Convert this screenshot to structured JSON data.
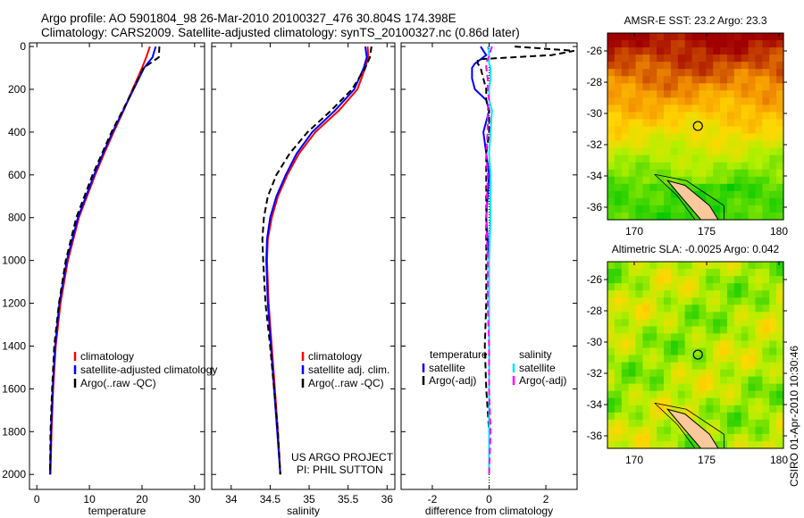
{
  "title_line1": "Argo profile: AO 5901804_98 26-Mar-2010 20100327_476 30.804S 174.398E",
  "title_line2": "Climatology: CARS2009. Satellite-adjusted climatology: synTS_20100327.nc (0.86d later)",
  "credit_project": "US ARGO PROJECT",
  "credit_pi": "PI: PHIL SUTTON",
  "timestamp": "CSIRO 01-Apr-2010 10:30:46",
  "colors": {
    "climatology": "#ff0000",
    "satellite": "#0000ff",
    "argo": "#000000",
    "sal_satellite": "#00e5ff",
    "sal_argo": "#ff00ff"
  },
  "chart_data": [
    {
      "type": "line",
      "xlabel": "temperature",
      "ylabel": "",
      "xlim": [
        -1.4,
        31.9
      ],
      "ylim": [
        2070,
        -17
      ],
      "xticks": [
        "0",
        "10",
        "20",
        "30"
      ],
      "xtickvals": [
        0,
        10,
        20,
        30
      ],
      "yticks": [
        "0",
        "200",
        "400",
        "600",
        "800",
        "1000",
        "1200",
        "1400",
        "1600",
        "1800",
        "2000"
      ],
      "ytickvals": [
        0,
        200,
        400,
        600,
        800,
        1000,
        1200,
        1400,
        1600,
        1800,
        2000
      ],
      "legend": [
        "climatology",
        "satellite-adjusted climatology",
        "Argo(..raw -QC)"
      ],
      "depth": [
        0,
        50,
        100,
        200,
        300,
        400,
        500,
        600,
        800,
        1000,
        1200,
        1400,
        1600,
        1800,
        2000
      ],
      "series": [
        {
          "name": "climatology",
          "values": [
            21.5,
            20.8,
            20,
            18.2,
            16.5,
            14.6,
            12.8,
            11.1,
            8.0,
            5.9,
            4.5,
            3.6,
            3.1,
            2.8,
            2.6
          ]
        },
        {
          "name": "satellite-adjusted climatology",
          "values": [
            22.6,
            22.0,
            20.4,
            18.4,
            16.4,
            14.4,
            12.6,
            10.9,
            7.8,
            5.7,
            4.3,
            3.5,
            3.0,
            2.7,
            2.5
          ]
        },
        {
          "name": "Argo(..raw -QC)",
          "values": [
            23.3,
            23.2,
            20.3,
            18.3,
            16.3,
            14.2,
            12.4,
            10.6,
            7.5,
            5.5,
            4.2,
            3.3,
            2.9,
            2.6,
            2.5
          ]
        }
      ]
    },
    {
      "type": "line",
      "xlabel": "salinity",
      "xlim": [
        33.75,
        36.1
      ],
      "ylim": [
        2070,
        -17
      ],
      "xticks": [
        "34",
        "34.5",
        "35",
        "35.5",
        "36"
      ],
      "xtickvals": [
        34,
        34.5,
        35,
        35.5,
        36
      ],
      "legend": [
        "climatology",
        "satellite adj. clim.",
        "Argo(..raw -QC)"
      ],
      "depth": [
        0,
        50,
        100,
        200,
        300,
        400,
        500,
        600,
        700,
        800,
        900,
        1000,
        1200,
        1400,
        1600,
        1800,
        2000
      ],
      "series": [
        {
          "name": "climatology",
          "values": [
            35.75,
            35.76,
            35.72,
            35.62,
            35.38,
            35.08,
            34.87,
            34.72,
            34.6,
            34.52,
            34.47,
            34.46,
            34.48,
            34.52,
            34.56,
            34.6,
            34.63
          ]
        },
        {
          "name": "satellite adj. clim.",
          "values": [
            35.72,
            35.74,
            35.7,
            35.58,
            35.33,
            35.04,
            34.84,
            34.7,
            34.58,
            34.5,
            34.46,
            34.45,
            34.47,
            34.51,
            34.55,
            34.59,
            34.63
          ]
        },
        {
          "name": "Argo(..raw -QC)",
          "values": [
            35.8,
            35.78,
            35.72,
            35.55,
            35.28,
            34.98,
            34.75,
            34.58,
            34.47,
            34.42,
            34.4,
            34.41,
            34.44,
            34.5,
            34.55,
            34.6,
            34.63
          ]
        }
      ]
    },
    {
      "type": "line",
      "xlabel": "difference from climatology",
      "xlim": [
        -3.1,
        3.1
      ],
      "ylim": [
        2070,
        -17
      ],
      "xticks": [
        "-2",
        "0",
        "2"
      ],
      "xtickvals": [
        -2,
        0,
        2
      ],
      "legend": {
        "temperature_head": "temperature",
        "temperature": [
          "satellite",
          "Argo(-adj)"
        ],
        "salinity_head": "salinity",
        "salinity": [
          "satellite",
          "Argo(-adj)"
        ]
      },
      "depth": [
        0,
        20,
        40,
        60,
        80,
        100,
        150,
        200,
        250,
        300,
        400,
        500,
        600,
        800,
        1000,
        1200,
        1400,
        1600,
        1800,
        2000
      ],
      "series": [
        {
          "name": "temperature satellite",
          "values": [
            -0.3,
            -0.2,
            -0.1,
            -0.3,
            -0.5,
            -0.6,
            -0.6,
            -0.5,
            -0.1,
            0.0,
            -0.2,
            -0.1,
            0.0,
            -0.1,
            0.0,
            0.0,
            0.0,
            0.0,
            0.0,
            0.0
          ]
        },
        {
          "name": "temperature Argo(-adj)",
          "values": [
            0.9,
            3.0,
            2.2,
            -0.4,
            -0.4,
            -0.3,
            -0.2,
            -0.1,
            -0.1,
            0.0,
            0.0,
            -0.1,
            -0.1,
            -0.1,
            -0.1,
            -0.1,
            -0.15,
            -0.1,
            0.0,
            0.0
          ]
        },
        {
          "name": "salinity satellite",
          "values": [
            -0.05,
            -0.02,
            0.0,
            0.0,
            0.0,
            0.05,
            0.05,
            0.0,
            0.0,
            0.1,
            0.05,
            0.0,
            0.05,
            0.05,
            0.0,
            0.0,
            0.0,
            0.0,
            0.0,
            0.0
          ]
        },
        {
          "name": "salinity Argo(-adj)",
          "values": [
            0.1,
            0.05,
            0.02,
            -0.05,
            -0.1,
            -0.1,
            -0.05,
            -0.05,
            0.0,
            -0.05,
            -0.05,
            -0.1,
            -0.05,
            -0.1,
            -0.05,
            -0.05,
            0.0,
            0.0,
            0.05,
            0.0
          ]
        }
      ]
    }
  ],
  "maps": [
    {
      "title": "AMSR-E SST: 23.2 Argo: 23.3",
      "xticks": [
        "170",
        "175",
        "180"
      ],
      "yticks": [
        "-26",
        "-28",
        "-30",
        "-32",
        "-34",
        "-36"
      ],
      "palette": "sst",
      "profile_lon": 174.398,
      "profile_lat": -30.804
    },
    {
      "title": "Altimetric SLA: -0.0025 Argo: 0.042",
      "xticks": [
        "170",
        "175",
        "180"
      ],
      "yticks": [
        "-26",
        "-28",
        "-30",
        "-32",
        "-34",
        "-36"
      ],
      "palette": "sla",
      "profile_lon": 174.398,
      "profile_lat": -30.804
    }
  ]
}
